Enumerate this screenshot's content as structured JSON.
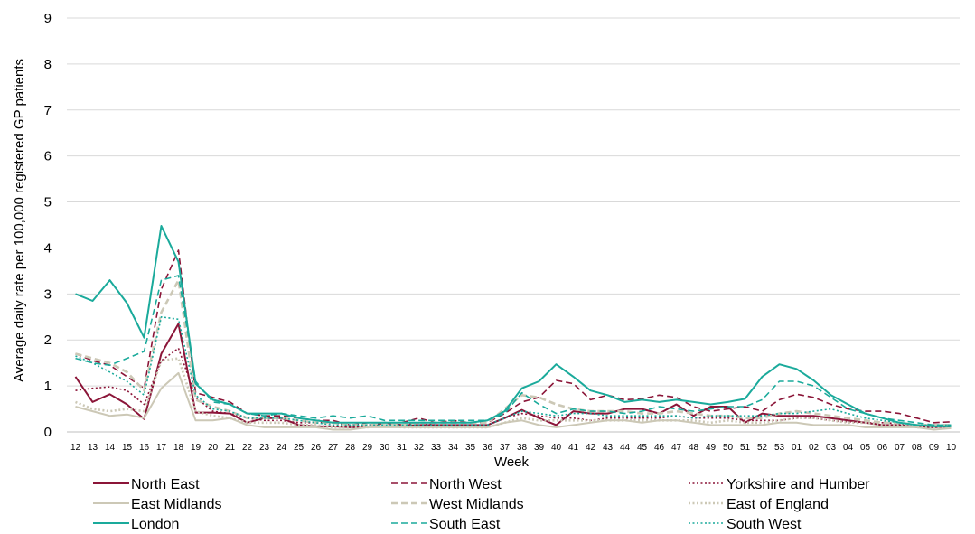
{
  "chart_data": {
    "type": "line",
    "xlabel": "Week",
    "ylabel": "Average daily rate per 100,000 registered GP patients",
    "ylim": [
      0,
      9
    ],
    "yticks": [
      "0",
      "1",
      "2",
      "3",
      "4",
      "5",
      "6",
      "7",
      "8",
      "9"
    ],
    "grid": true,
    "legend_position": "bottom",
    "categories": [
      "12",
      "13",
      "14",
      "15",
      "16",
      "17",
      "18",
      "19",
      "20",
      "21",
      "22",
      "23",
      "24",
      "25",
      "26",
      "27",
      "28",
      "29",
      "30",
      "31",
      "32",
      "33",
      "34",
      "35",
      "36",
      "37",
      "38",
      "39",
      "40",
      "41",
      "42",
      "43",
      "44",
      "45",
      "46",
      "47",
      "48",
      "49",
      "50",
      "51",
      "52",
      "53",
      "01",
      "02",
      "03",
      "04",
      "05",
      "06",
      "07",
      "08",
      "09",
      "10"
    ],
    "series": [
      {
        "name": "North East",
        "color": "#8b1538",
        "dash": "solid",
        "width": 2,
        "values": [
          1.2,
          0.65,
          0.82,
          0.6,
          0.28,
          1.7,
          2.35,
          0.42,
          0.42,
          0.4,
          0.2,
          0.3,
          0.3,
          0.15,
          0.12,
          0.12,
          0.1,
          0.1,
          0.2,
          0.15,
          0.15,
          0.15,
          0.15,
          0.15,
          0.15,
          0.3,
          0.48,
          0.3,
          0.15,
          0.45,
          0.4,
          0.4,
          0.5,
          0.5,
          0.4,
          0.6,
          0.35,
          0.55,
          0.55,
          0.2,
          0.4,
          0.35,
          0.35,
          0.35,
          0.3,
          0.25,
          0.2,
          0.15,
          0.15,
          0.1,
          0.1,
          0.12
        ]
      },
      {
        "name": "North West",
        "color": "#8b1538",
        "dash": "dashed",
        "width": 1.6,
        "values": [
          1.7,
          1.55,
          1.45,
          1.2,
          0.95,
          3.1,
          3.95,
          0.85,
          0.75,
          0.65,
          0.4,
          0.35,
          0.35,
          0.3,
          0.25,
          0.25,
          0.15,
          0.2,
          0.2,
          0.2,
          0.3,
          0.2,
          0.25,
          0.2,
          0.2,
          0.4,
          0.65,
          0.75,
          1.12,
          1.05,
          0.7,
          0.8,
          0.7,
          0.72,
          0.8,
          0.75,
          0.55,
          0.45,
          0.5,
          0.55,
          0.45,
          0.7,
          0.82,
          0.75,
          0.6,
          0.5,
          0.45,
          0.45,
          0.4,
          0.3,
          0.2,
          0.22
        ]
      },
      {
        "name": "Yorkshire and Humber",
        "color": "#8b1538",
        "dash": "dotted",
        "width": 1.6,
        "values": [
          0.9,
          0.95,
          0.98,
          0.9,
          0.6,
          1.55,
          1.82,
          0.75,
          0.45,
          0.4,
          0.3,
          0.25,
          0.25,
          0.2,
          0.2,
          0.2,
          0.15,
          0.15,
          0.2,
          0.15,
          0.2,
          0.15,
          0.15,
          0.15,
          0.15,
          0.3,
          0.4,
          0.35,
          0.3,
          0.3,
          0.25,
          0.3,
          0.3,
          0.3,
          0.3,
          0.35,
          0.3,
          0.3,
          0.3,
          0.25,
          0.25,
          0.25,
          0.3,
          0.3,
          0.25,
          0.22,
          0.2,
          0.2,
          0.18,
          0.15,
          0.12,
          0.12
        ]
      },
      {
        "name": "East Midlands",
        "color": "#ccc8b6",
        "dash": "solid",
        "width": 2,
        "values": [
          0.55,
          0.45,
          0.35,
          0.38,
          0.3,
          0.95,
          1.28,
          0.25,
          0.25,
          0.3,
          0.15,
          0.1,
          0.1,
          0.1,
          0.1,
          0.05,
          0.05,
          0.1,
          0.1,
          0.1,
          0.1,
          0.1,
          0.1,
          0.1,
          0.1,
          0.2,
          0.25,
          0.15,
          0.1,
          0.15,
          0.2,
          0.25,
          0.25,
          0.2,
          0.25,
          0.25,
          0.2,
          0.15,
          0.15,
          0.15,
          0.15,
          0.2,
          0.2,
          0.15,
          0.15,
          0.15,
          0.1,
          0.1,
          0.1,
          0.1,
          0.05,
          0.08
        ]
      },
      {
        "name": "West Midlands",
        "color": "#ccc8b6",
        "dash": "dashed",
        "width": 2.6,
        "values": [
          1.7,
          1.6,
          1.5,
          1.3,
          0.9,
          2.6,
          3.3,
          0.7,
          0.55,
          0.45,
          0.3,
          0.3,
          0.3,
          0.25,
          0.2,
          0.2,
          0.15,
          0.15,
          0.2,
          0.15,
          0.2,
          0.2,
          0.2,
          0.2,
          0.2,
          0.5,
          0.8,
          0.75,
          0.6,
          0.5,
          0.45,
          0.45,
          0.45,
          0.4,
          0.4,
          0.45,
          0.4,
          0.35,
          0.35,
          0.3,
          0.3,
          0.4,
          0.45,
          0.4,
          0.35,
          0.3,
          0.25,
          0.2,
          0.2,
          0.15,
          0.15,
          0.15
        ]
      },
      {
        "name": "East of England",
        "color": "#ccc8b6",
        "dash": "dotted",
        "width": 2.6,
        "values": [
          0.65,
          0.5,
          0.45,
          0.5,
          0.45,
          1.55,
          1.6,
          0.45,
          0.35,
          0.3,
          0.2,
          0.2,
          0.2,
          0.15,
          0.15,
          0.1,
          0.1,
          0.1,
          0.15,
          0.1,
          0.1,
          0.1,
          0.1,
          0.1,
          0.1,
          0.2,
          0.3,
          0.25,
          0.25,
          0.25,
          0.25,
          0.25,
          0.25,
          0.25,
          0.25,
          0.25,
          0.25,
          0.2,
          0.25,
          0.2,
          0.2,
          0.25,
          0.3,
          0.3,
          0.25,
          0.2,
          0.2,
          0.15,
          0.15,
          0.1,
          0.1,
          0.1
        ]
      },
      {
        "name": "London",
        "color": "#1aaa9b",
        "dash": "solid",
        "width": 2,
        "values": [
          3.0,
          2.85,
          3.3,
          2.8,
          2.05,
          4.48,
          3.7,
          1.05,
          0.7,
          0.6,
          0.4,
          0.4,
          0.4,
          0.3,
          0.25,
          0.2,
          0.2,
          0.2,
          0.2,
          0.2,
          0.2,
          0.2,
          0.2,
          0.2,
          0.25,
          0.45,
          0.95,
          1.1,
          1.47,
          1.2,
          0.9,
          0.8,
          0.65,
          0.7,
          0.65,
          0.7,
          0.65,
          0.6,
          0.65,
          0.72,
          1.2,
          1.47,
          1.37,
          1.12,
          0.8,
          0.6,
          0.4,
          0.3,
          0.2,
          0.15,
          0.12,
          0.12
        ]
      },
      {
        "name": "South East",
        "color": "#1aaa9b",
        "dash": "dashed",
        "width": 1.6,
        "values": [
          1.6,
          1.5,
          1.45,
          1.6,
          1.75,
          3.3,
          3.4,
          1.1,
          0.65,
          0.6,
          0.4,
          0.35,
          0.4,
          0.35,
          0.3,
          0.35,
          0.3,
          0.35,
          0.25,
          0.25,
          0.25,
          0.25,
          0.25,
          0.25,
          0.25,
          0.4,
          0.85,
          0.6,
          0.4,
          0.5,
          0.45,
          0.45,
          0.4,
          0.45,
          0.55,
          0.5,
          0.45,
          0.5,
          0.55,
          0.55,
          0.7,
          1.1,
          1.1,
          1.0,
          0.75,
          0.5,
          0.4,
          0.3,
          0.25,
          0.2,
          0.15,
          0.15
        ]
      },
      {
        "name": "South West",
        "color": "#1aaa9b",
        "dash": "dotted",
        "width": 1.6,
        "values": [
          1.65,
          1.5,
          1.3,
          1.1,
          0.8,
          2.5,
          2.45,
          0.8,
          0.5,
          0.45,
          0.3,
          0.3,
          0.3,
          0.25,
          0.2,
          0.15,
          0.15,
          0.15,
          0.15,
          0.15,
          0.15,
          0.15,
          0.15,
          0.15,
          0.15,
          0.3,
          0.45,
          0.4,
          0.35,
          0.4,
          0.4,
          0.35,
          0.35,
          0.35,
          0.35,
          0.35,
          0.3,
          0.35,
          0.35,
          0.35,
          0.35,
          0.4,
          0.4,
          0.45,
          0.5,
          0.4,
          0.3,
          0.25,
          0.2,
          0.15,
          0.15,
          0.15
        ]
      }
    ]
  }
}
